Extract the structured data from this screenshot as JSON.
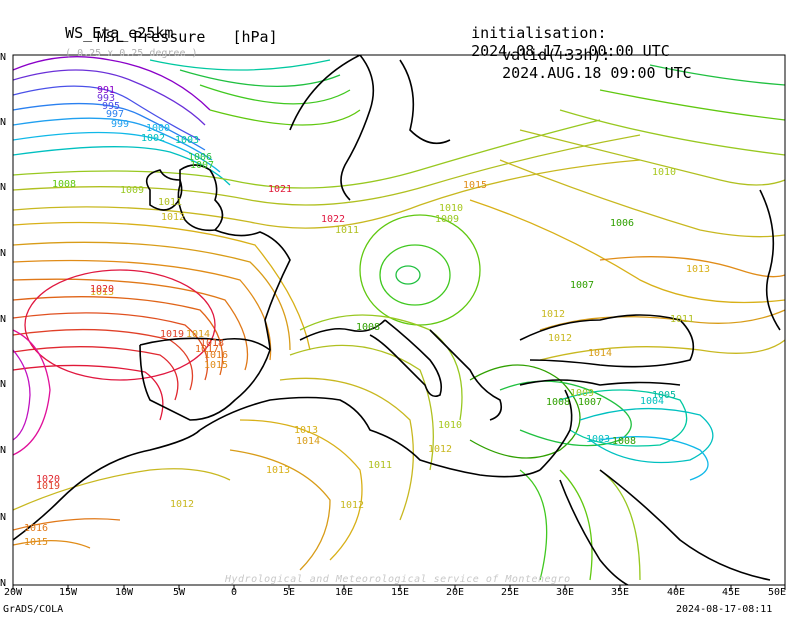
{
  "header": {
    "model": "WS_Eta_e25km",
    "resolution": "( 0.25 x 0.25 degree )",
    "field": "MSL Pressure   [hPa]",
    "init_label": "initialisation:",
    "init_value": "2024.08.17.  00:00 UTC",
    "valid_label": "valid(+33h):",
    "valid_value": "2024.AUG.18 09:00 UTC"
  },
  "axes": {
    "lon_ticks": [
      "20W",
      "15W",
      "10W",
      "5W",
      "0",
      "5E",
      "10E",
      "15E",
      "20E",
      "25E",
      "30E",
      "35E",
      "40E",
      "45E",
      "50E"
    ],
    "lat_ticks": [
      "N",
      "N",
      "N",
      "N",
      "N",
      "N",
      "N",
      "N",
      "N",
      "N"
    ]
  },
  "footer": {
    "left": "GrADS/COLA",
    "right": "2024-08-17-08:11",
    "watermark": "Hydrological and Meteorological service of Montenegro"
  },
  "contour_labels": [
    {
      "t": "991",
      "c": "#8a00c8"
    },
    {
      "t": "993",
      "c": "#6a30d8"
    },
    {
      "t": "995",
      "c": "#4a50e8"
    },
    {
      "t": "997",
      "c": "#2a80f0"
    },
    {
      "t": "999",
      "c": "#20a0f0"
    },
    {
      "t": "1000",
      "c": "#10b8e8"
    },
    {
      "t": "1002",
      "c": "#00c0c0"
    },
    {
      "t": "1003",
      "c": "#00c8a0"
    },
    {
      "t": "1006",
      "c": "#20c040"
    },
    {
      "t": "1007",
      "c": "#40c820"
    },
    {
      "t": "1008",
      "c": "#60c810"
    },
    {
      "t": "1009",
      "c": "#98c820"
    },
    {
      "t": "1011",
      "c": "#b0c020"
    },
    {
      "t": "1012",
      "c": "#c8b820"
    },
    {
      "t": "1013",
      "c": "#d8b018"
    },
    {
      "t": "1014",
      "c": "#d89c18"
    },
    {
      "t": "1015",
      "c": "#e08c18"
    },
    {
      "t": "1016",
      "c": "#e07818"
    },
    {
      "t": "1017",
      "c": "#e06418"
    },
    {
      "t": "1018",
      "c": "#e05020"
    },
    {
      "t": "1019",
      "c": "#e04028"
    },
    {
      "t": "1020",
      "c": "#e02830"
    },
    {
      "t": "1021",
      "c": "#e01838"
    },
    {
      "t": "1022",
      "c": "#e01840"
    },
    {
      "t": "1011",
      "c": "#b0c020"
    },
    {
      "t": "1010",
      "c": "#a8c820"
    },
    {
      "t": "1009",
      "c": "#98c820"
    },
    {
      "t": "1008",
      "c": "#30a000"
    },
    {
      "t": "1007",
      "c": "#30a000"
    },
    {
      "t": "1006",
      "c": "#30a000"
    },
    {
      "t": "1012",
      "c": "#c8b820"
    },
    {
      "t": "1013",
      "c": "#d8b018"
    },
    {
      "t": "1014",
      "c": "#d89c18"
    },
    {
      "t": "1015",
      "c": "#e08c18"
    },
    {
      "t": "1012",
      "c": "#c8b820"
    },
    {
      "t": "1011",
      "c": "#b0c020"
    },
    {
      "t": "1010",
      "c": "#a8c820"
    },
    {
      "t": "1009",
      "c": "#98c820"
    },
    {
      "t": "1008",
      "c": "#30a000"
    },
    {
      "t": "1007",
      "c": "#30a000"
    },
    {
      "t": "1005",
      "c": "#00b8a0"
    },
    {
      "t": "1004",
      "c": "#00c0c0"
    },
    {
      "t": "1003",
      "c": "#00c0c0"
    },
    {
      "t": "1008",
      "c": "#30a000"
    },
    {
      "t": "1013",
      "c": "#d8b018"
    },
    {
      "t": "1014",
      "c": "#d89c18"
    },
    {
      "t": "1016",
      "c": "#e07818"
    },
    {
      "t": "1015",
      "c": "#e08c18"
    },
    {
      "t": "1020",
      "c": "#e02830"
    },
    {
      "t": "1019",
      "c": "#e04028"
    },
    {
      "t": "1012",
      "c": "#c8b820"
    },
    {
      "t": "1011",
      "c": "#b0c020"
    },
    {
      "t": "1010",
      "c": "#a8c820"
    },
    {
      "t": "1012",
      "c": "#c8b820"
    },
    {
      "t": "1013",
      "c": "#d8b018"
    },
    {
      "t": "1012",
      "c": "#c8b820"
    }
  ]
}
